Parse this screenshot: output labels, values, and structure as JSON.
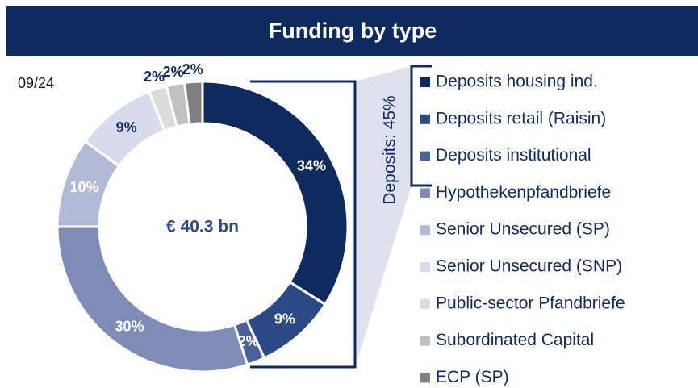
{
  "chart_data": {
    "type": "pie",
    "donut": true,
    "title": "Funding by type",
    "date_label": "09/24",
    "center_label": "€ 40.3 bn",
    "annotation": "Deposits: 45%",
    "categories": [
      "Deposits housing ind.",
      "Deposits retail (Raisin)",
      "Deposits institutional",
      "Hypothekenpfandbriefe",
      "Senior Unsecured (SP)",
      "Senior Unsecured (SNP)",
      "Public-sector Pfandbriefe",
      "Subordinated Capital",
      "ECP (SP)"
    ],
    "values": [
      34,
      9,
      2,
      30,
      10,
      9,
      2,
      2,
      2
    ],
    "value_labels": [
      "34%",
      "9%",
      "2%",
      "30%",
      "10%",
      "9%",
      "2%",
      "2%",
      "2%"
    ],
    "colors": [
      "#0f2a5e",
      "#2b4a85",
      "#4a6199",
      "#7f8cb8",
      "#b3bad8",
      "#d7dbec",
      "#dcdcdc",
      "#c0c0c0",
      "#808080"
    ]
  }
}
